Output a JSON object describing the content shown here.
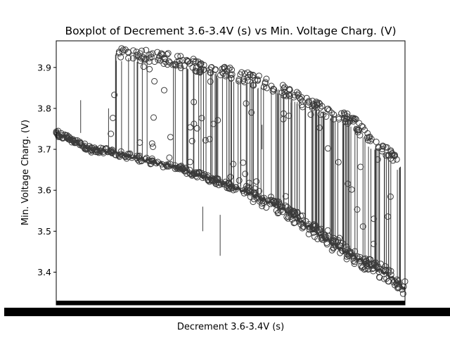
{
  "chart_data": {
    "type": "boxplot",
    "title": "Boxplot of Decrement 3.6-3.4V (s) vs Min. Voltage Charg. (V)",
    "xlabel": "Decrement 3.6-3.4V (s)",
    "ylabel": "Min. Voltage Charg. (V)",
    "ylim": [
      3.32,
      3.965
    ],
    "yticks": [
      3.4,
      3.5,
      3.6,
      3.7,
      3.8,
      3.9
    ],
    "ytick_labels": [
      "3.4",
      "3.5",
      "3.6",
      "3.7",
      "3.8",
      "3.9"
    ],
    "xtick_labels_note": "x tick labels are overlapping and unreadable",
    "grid": false,
    "legend": "none",
    "box_color": "#3b3b3b",
    "categories_count_approx": 900,
    "series": [
      {
        "values_note": "main lower band of box medians and outliers, decreasing trend",
        "x_fraction": [
          0.0,
          0.05,
          0.1,
          0.15,
          0.2,
          0.25,
          0.3,
          0.35,
          0.4,
          0.45,
          0.5,
          0.55,
          0.6,
          0.65,
          0.7,
          0.75,
          0.8,
          0.85,
          0.9,
          0.95,
          1.0
        ],
        "y": [
          3.74,
          3.72,
          3.7,
          3.695,
          3.685,
          3.675,
          3.665,
          3.655,
          3.64,
          3.625,
          3.61,
          3.595,
          3.575,
          3.555,
          3.525,
          3.495,
          3.465,
          3.44,
          3.415,
          3.395,
          3.36
        ]
      },
      {
        "values_note": "upper band of outliers, decreasing trend",
        "x_fraction": [
          0.2,
          0.25,
          0.3,
          0.35,
          0.4,
          0.45,
          0.5,
          0.55,
          0.6,
          0.65,
          0.7,
          0.75,
          0.8,
          0.85,
          0.9,
          0.95,
          1.0
        ],
        "y": [
          3.935,
          3.93,
          3.925,
          3.915,
          3.905,
          3.895,
          3.885,
          3.875,
          3.86,
          3.845,
          3.82,
          3.8,
          3.785,
          3.77,
          3.72,
          3.69,
          3.65
        ]
      }
    ]
  }
}
